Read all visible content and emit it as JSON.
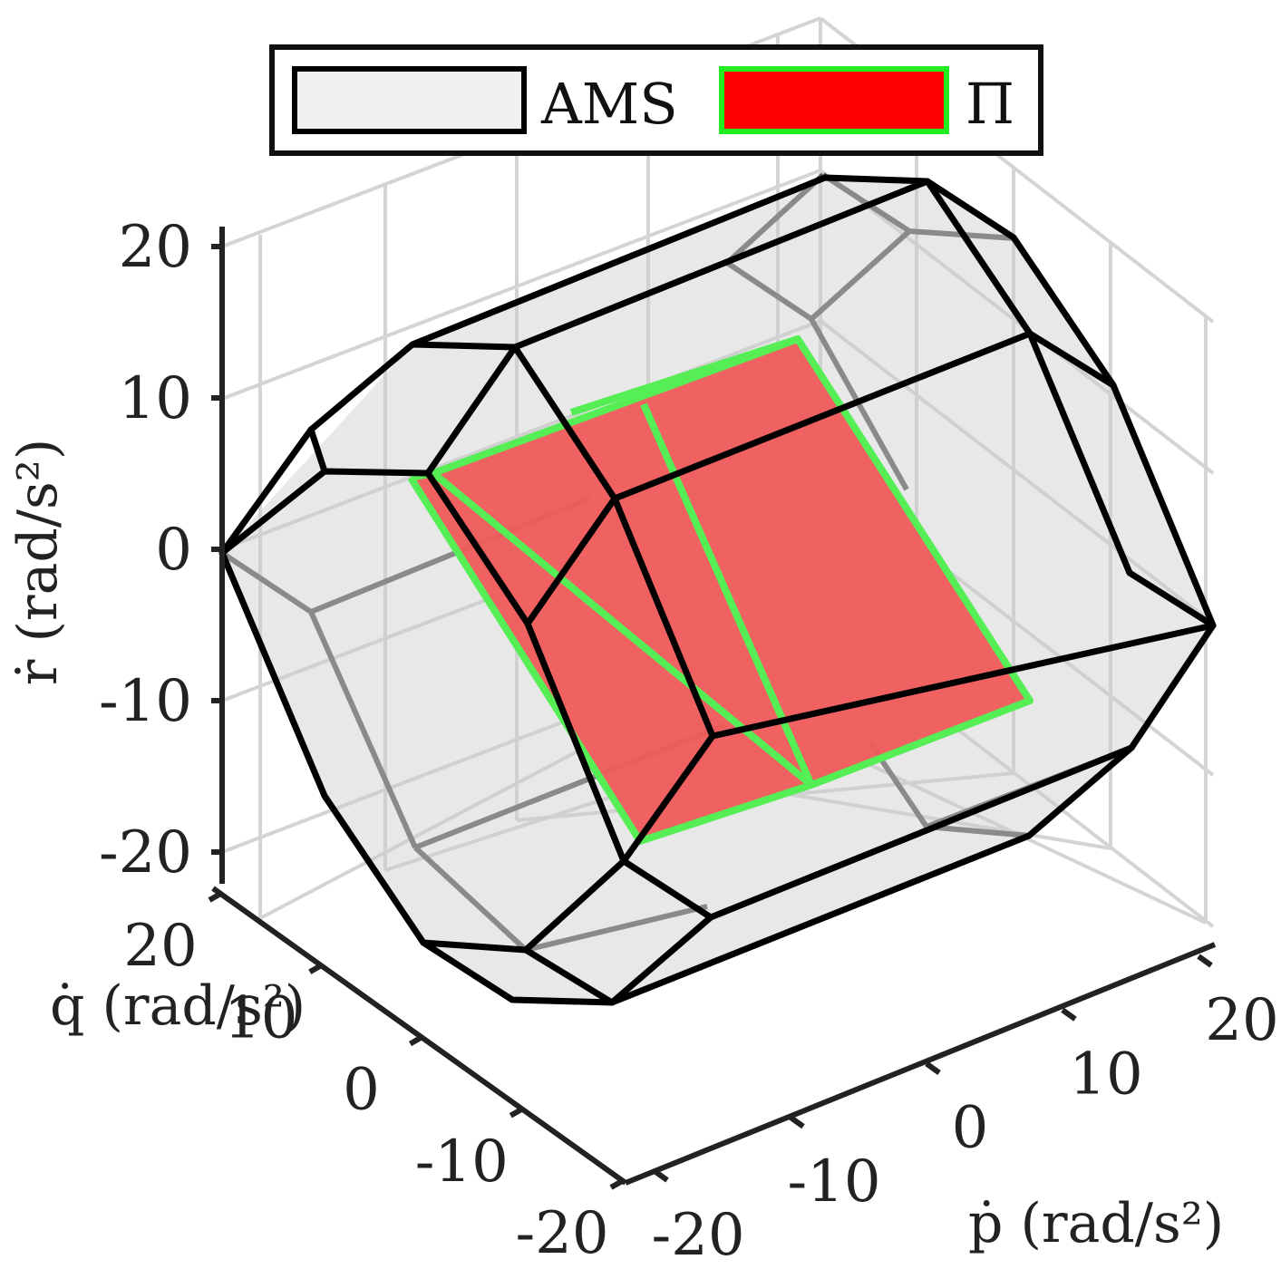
{
  "chart_data": {
    "type": "3d-polytope",
    "xlabel": "ṗ (rad/s²)",
    "ylabel": "q̇ (rad/s²)",
    "zlabel": "ṙ (rad/s²)",
    "x_ticks": [
      "-20",
      "-10",
      "0",
      "10",
      "20"
    ],
    "y_ticks": [
      "-20",
      "-10",
      "0",
      "10",
      "20"
    ],
    "z_ticks": [
      "-20",
      "-10",
      "0",
      "10",
      "20"
    ],
    "xlim": [
      -20,
      20
    ],
    "ylim": [
      -20,
      20
    ],
    "zlim": [
      -20,
      20
    ],
    "grid": true,
    "legend_position": "top",
    "legend": [
      {
        "label": "AMS",
        "fill": "#f0f0f0",
        "edge": "#000000"
      },
      {
        "label": "Π",
        "fill": "#ff0000",
        "edge": "#22ee22"
      }
    ],
    "colors": {
      "ams_fill": "#cfcfcf",
      "ams_edge": "#000000",
      "pi_fill": "#f05a5a",
      "pi_edge": "#55ee55"
    }
  }
}
